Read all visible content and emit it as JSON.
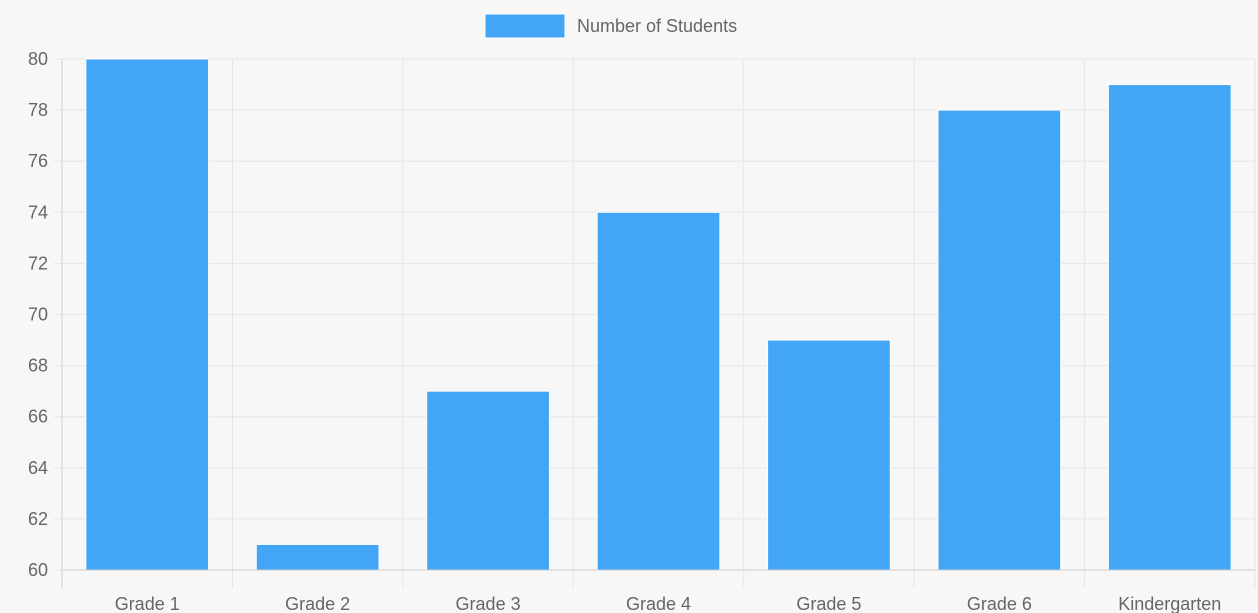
{
  "chart_data": {
    "type": "bar",
    "categories": [
      "Grade 1",
      "Grade 2",
      "Grade 3",
      "Grade 4",
      "Grade 5",
      "Grade 6",
      "Kindergarten"
    ],
    "series": [
      {
        "name": "Number of Students",
        "values": [
          80,
          61,
          67,
          74,
          69,
          78,
          79
        ]
      }
    ],
    "ylim": [
      60,
      80
    ],
    "yticks": [
      60,
      62,
      64,
      66,
      68,
      70,
      72,
      74,
      76,
      78,
      80
    ],
    "grid": true,
    "legend_position": "top-center",
    "colors": {
      "bar_fill": "#42a5f5",
      "bar_stroke": "#ffffff",
      "grid": "#e6e6e6",
      "axis": "#cccccc",
      "text": "#666666",
      "background": "#f7f7f8"
    }
  }
}
